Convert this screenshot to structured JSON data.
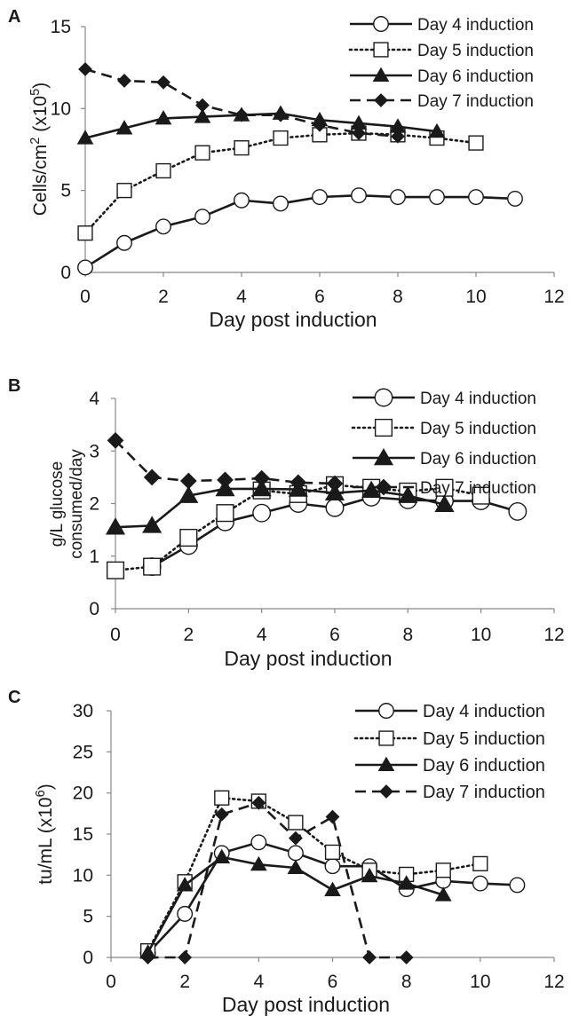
{
  "chart_data": [
    {
      "panel": "A",
      "type": "line",
      "title": "",
      "xlabel": "Day post induction",
      "ylabel": "Cells/cm",
      "ylabel_sup": "2",
      "ylabel_units": " (x10",
      "ylabel_units_sup": "5",
      "ylabel_close": ")",
      "xlim": [
        0,
        12
      ],
      "ylim": [
        0,
        15
      ],
      "xticks": [
        0,
        2,
        4,
        6,
        8,
        10,
        12
      ],
      "yticks": [
        0,
        5,
        10,
        15
      ],
      "legend_position": "top-right",
      "grid": false,
      "series": [
        {
          "name": "Day 4 induction",
          "marker": "circle",
          "line": "solid",
          "x": [
            0,
            1,
            2,
            3,
            4,
            5,
            6,
            7,
            8,
            9,
            10,
            11
          ],
          "y": [
            0.3,
            1.8,
            2.8,
            3.4,
            4.4,
            4.2,
            4.6,
            4.7,
            4.6,
            4.6,
            4.6,
            4.5
          ]
        },
        {
          "name": "Day 5 induction",
          "marker": "square",
          "line": "dotted",
          "x": [
            0,
            1,
            2,
            3,
            4,
            5,
            6,
            7,
            8,
            9,
            10
          ],
          "y": [
            2.4,
            5.0,
            6.2,
            7.3,
            7.6,
            8.2,
            8.4,
            8.5,
            8.4,
            8.2,
            7.9
          ]
        },
        {
          "name": "Day 6 induction",
          "marker": "triangle",
          "line": "solid",
          "x": [
            0,
            1,
            2,
            3,
            4,
            5,
            6,
            7,
            8,
            9
          ],
          "y": [
            8.2,
            8.8,
            9.4,
            9.5,
            9.6,
            9.7,
            9.3,
            9.1,
            8.9,
            8.6
          ]
        },
        {
          "name": "Day 7 induction",
          "marker": "diamond",
          "line": "dashed",
          "x": [
            0,
            1,
            2,
            3,
            4,
            5,
            6,
            7,
            8
          ],
          "y": [
            12.4,
            11.7,
            11.6,
            10.2,
            9.6,
            9.6,
            9.0,
            8.5,
            8.3
          ]
        }
      ]
    },
    {
      "panel": "B",
      "type": "line",
      "title": "",
      "xlabel": "Day post induction",
      "ylabel_lines": [
        "g/L glucose",
        "consumed/day"
      ],
      "xlim": [
        0,
        12
      ],
      "ylim": [
        0,
        4
      ],
      "xticks": [
        0,
        2,
        4,
        6,
        8,
        10,
        12
      ],
      "yticks": [
        0,
        1,
        2,
        3,
        4
      ],
      "legend_position": "top-right",
      "grid": false,
      "series": [
        {
          "name": "Day 4 induction",
          "marker": "circle",
          "line": "solid",
          "x": [
            1,
            2,
            3,
            4,
            5,
            6,
            7,
            8,
            9,
            10,
            11
          ],
          "y": [
            0.8,
            1.2,
            1.65,
            1.82,
            2.0,
            1.92,
            2.12,
            2.07,
            2.05,
            2.05,
            1.85
          ]
        },
        {
          "name": "Day 5 induction",
          "marker": "square",
          "line": "dotted",
          "x": [
            0,
            1,
            2,
            3,
            4,
            5,
            6,
            7,
            8,
            9,
            10
          ],
          "y": [
            0.73,
            0.8,
            1.35,
            1.82,
            2.25,
            2.18,
            2.35,
            2.3,
            2.23,
            2.3,
            2.15
          ]
        },
        {
          "name": "Day 6 induction",
          "marker": "triangle",
          "line": "solid",
          "x": [
            0,
            1,
            2,
            3,
            4,
            5,
            6,
            7,
            8,
            9
          ],
          "y": [
            1.55,
            1.58,
            2.15,
            2.28,
            2.28,
            2.27,
            2.2,
            2.25,
            2.15,
            1.98
          ]
        },
        {
          "name": "Day 7 induction",
          "marker": "diamond",
          "line": "dashed",
          "x": [
            0,
            1,
            2,
            3,
            4,
            5,
            6
          ],
          "y": [
            3.2,
            2.5,
            2.43,
            2.45,
            2.48,
            2.4,
            2.38
          ]
        }
      ]
    },
    {
      "panel": "C",
      "type": "line",
      "title": "",
      "xlabel": "Day post induction",
      "ylabel": "tu/mL (x10",
      "ylabel_sup": "6",
      "ylabel_close": ")",
      "xlim": [
        0,
        12
      ],
      "ylim": [
        0,
        30
      ],
      "xticks": [
        0,
        2,
        4,
        6,
        8,
        10,
        12
      ],
      "yticks": [
        0,
        5,
        10,
        15,
        20,
        25,
        30
      ],
      "legend_position": "top-right",
      "grid": false,
      "series": [
        {
          "name": "Day 4 induction",
          "marker": "circle",
          "line": "solid",
          "x": [
            1,
            2,
            3,
            4,
            5,
            6,
            7,
            8,
            9,
            10,
            11
          ],
          "y": [
            0.5,
            5.3,
            12.7,
            14.0,
            12.7,
            11.1,
            11.1,
            8.3,
            9.3,
            9.0,
            8.8
          ]
        },
        {
          "name": "Day 5 induction",
          "marker": "square",
          "line": "dotted",
          "x": [
            1,
            2,
            3,
            4,
            5,
            6,
            7,
            8,
            9,
            10
          ],
          "y": [
            0.8,
            9.2,
            19.4,
            19.0,
            16.4,
            12.8,
            10.6,
            10.1,
            10.6,
            11.4
          ]
        },
        {
          "name": "Day 6 induction",
          "marker": "triangle",
          "line": "solid",
          "x": [
            1,
            2,
            3,
            4,
            5,
            6,
            7,
            8,
            9
          ],
          "y": [
            0.6,
            8.8,
            12.2,
            11.3,
            10.9,
            8.2,
            9.9,
            9.0,
            7.6
          ]
        },
        {
          "name": "Day 7 induction",
          "marker": "diamond",
          "line": "dashed",
          "x": [
            1,
            2,
            3,
            4,
            5,
            6,
            7,
            8
          ],
          "y": [
            0,
            0,
            17.4,
            18.8,
            14.5,
            17.1,
            0,
            0
          ]
        }
      ]
    }
  ]
}
